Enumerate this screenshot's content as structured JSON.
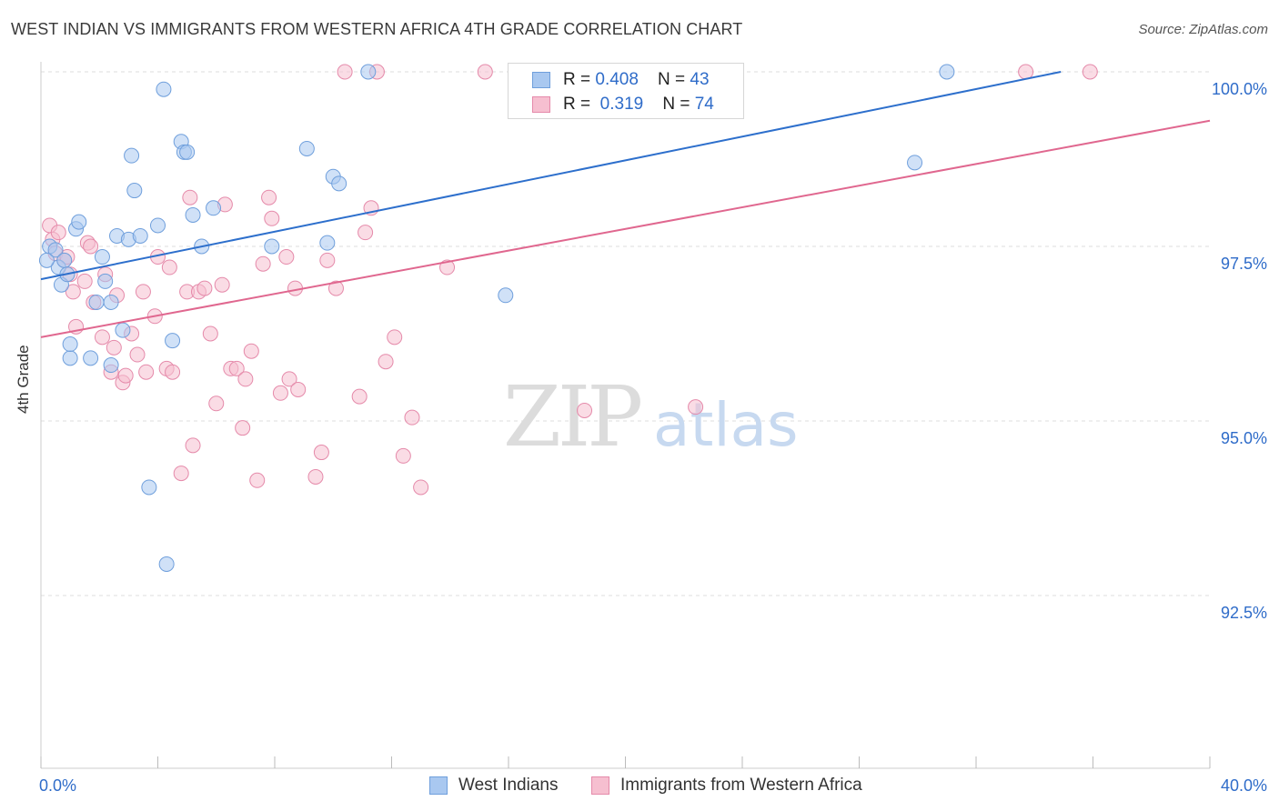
{
  "title": "WEST INDIAN VS IMMIGRANTS FROM WESTERN AFRICA 4TH GRADE CORRELATION CHART",
  "source": "Source: ZipAtlas.com",
  "watermark": {
    "zip": "ZIP",
    "atlas": "atlas"
  },
  "colors": {
    "blue_fill": "#a9c8f0",
    "blue_stroke": "#6f9fdc",
    "blue_line": "#2d6fcc",
    "pink_fill": "#f6bfd0",
    "pink_stroke": "#e58aaa",
    "pink_line": "#e0678f",
    "axis_text": "#2f6cc9",
    "grid": "#dddddd"
  },
  "legend": {
    "row1": {
      "r_label": "R = ",
      "r_value": "0.408",
      "n_label": "N = ",
      "n_value": "43"
    },
    "row2": {
      "r_label": "R = ",
      "r_value": "0.319",
      "n_label": "N = ",
      "n_value": "74"
    }
  },
  "chart_data": {
    "type": "scatter",
    "title": "WEST INDIAN VS IMMIGRANTS FROM WESTERN AFRICA 4TH GRADE CORRELATION CHART",
    "xlabel": "",
    "ylabel": "4th Grade",
    "xlim": [
      0,
      40
    ],
    "ylim": [
      90.2,
      100.45
    ],
    "x_tick_labels": [
      "0.0%",
      "40.0%"
    ],
    "y_ticks": [
      92.5,
      95.0,
      97.5,
      100.0
    ],
    "y_tick_labels": [
      "92.5%",
      "95.0%",
      "97.5%",
      "100.0%"
    ],
    "grid": true,
    "legend_position": "top-center",
    "series": [
      {
        "name": "West Indians",
        "color": "#a9c8f0",
        "r": 0.408,
        "n": 43,
        "trend": {
          "x": [
            0,
            34.9
          ],
          "y": [
            97.03,
            100.0
          ]
        },
        "points": [
          [
            0.3,
            97.5
          ],
          [
            0.5,
            97.45
          ],
          [
            0.6,
            97.2
          ],
          [
            0.7,
            96.95
          ],
          [
            0.8,
            97.3
          ],
          [
            0.9,
            97.1
          ],
          [
            1.0,
            95.9
          ],
          [
            1.0,
            96.1
          ],
          [
            1.2,
            97.75
          ],
          [
            1.3,
            97.85
          ],
          [
            1.7,
            95.9
          ],
          [
            1.9,
            96.7
          ],
          [
            2.1,
            97.35
          ],
          [
            2.2,
            97.0
          ],
          [
            2.4,
            96.7
          ],
          [
            2.4,
            95.8
          ],
          [
            2.6,
            97.65
          ],
          [
            2.8,
            96.3
          ],
          [
            3.0,
            97.6
          ],
          [
            3.1,
            98.8
          ],
          [
            3.2,
            98.3
          ],
          [
            3.4,
            97.65
          ],
          [
            3.7,
            94.05
          ],
          [
            4.0,
            97.8
          ],
          [
            4.2,
            99.75
          ],
          [
            4.3,
            92.95
          ],
          [
            4.5,
            96.15
          ],
          [
            4.8,
            99.0
          ],
          [
            4.9,
            98.85
          ],
          [
            5.0,
            98.85
          ],
          [
            5.2,
            97.95
          ],
          [
            5.5,
            97.5
          ],
          [
            5.9,
            98.05
          ],
          [
            7.9,
            97.5
          ],
          [
            9.1,
            98.9
          ],
          [
            9.8,
            97.55
          ],
          [
            10.0,
            98.5
          ],
          [
            10.2,
            98.4
          ],
          [
            11.2,
            100.0
          ],
          [
            15.9,
            96.8
          ],
          [
            29.9,
            98.7
          ],
          [
            31.0,
            100.0
          ],
          [
            0.2,
            97.3
          ]
        ]
      },
      {
        "name": "Immigrants from Western Africa",
        "color": "#f6bfd0",
        "r": 0.319,
        "n": 74,
        "trend": {
          "x": [
            0,
            40
          ],
          "y": [
            96.2,
            99.3
          ]
        },
        "points": [
          [
            0.3,
            97.8
          ],
          [
            0.4,
            97.6
          ],
          [
            0.5,
            97.4
          ],
          [
            0.6,
            97.7
          ],
          [
            0.8,
            97.3
          ],
          [
            0.9,
            97.35
          ],
          [
            1.0,
            97.1
          ],
          [
            1.1,
            96.85
          ],
          [
            1.2,
            96.35
          ],
          [
            1.5,
            97.0
          ],
          [
            1.6,
            97.55
          ],
          [
            1.7,
            97.5
          ],
          [
            1.8,
            96.7
          ],
          [
            2.1,
            96.2
          ],
          [
            2.2,
            97.1
          ],
          [
            2.4,
            95.7
          ],
          [
            2.5,
            96.05
          ],
          [
            2.6,
            96.8
          ],
          [
            2.8,
            95.55
          ],
          [
            2.9,
            95.65
          ],
          [
            3.1,
            96.25
          ],
          [
            3.3,
            95.95
          ],
          [
            3.5,
            96.85
          ],
          [
            3.6,
            95.7
          ],
          [
            3.9,
            96.5
          ],
          [
            4.0,
            97.35
          ],
          [
            4.3,
            95.75
          ],
          [
            4.4,
            97.2
          ],
          [
            4.5,
            95.7
          ],
          [
            4.8,
            94.25
          ],
          [
            5.0,
            96.85
          ],
          [
            5.1,
            98.2
          ],
          [
            5.2,
            94.65
          ],
          [
            5.4,
            96.85
          ],
          [
            5.6,
            96.9
          ],
          [
            5.8,
            96.25
          ],
          [
            6.0,
            95.25
          ],
          [
            6.2,
            96.95
          ],
          [
            6.3,
            98.1
          ],
          [
            6.5,
            95.75
          ],
          [
            6.7,
            95.75
          ],
          [
            6.9,
            94.9
          ],
          [
            7.0,
            95.6
          ],
          [
            7.2,
            96.0
          ],
          [
            7.4,
            94.15
          ],
          [
            7.6,
            97.25
          ],
          [
            7.8,
            98.2
          ],
          [
            7.9,
            97.9
          ],
          [
            8.2,
            95.4
          ],
          [
            8.4,
            97.35
          ],
          [
            8.5,
            95.6
          ],
          [
            8.7,
            96.9
          ],
          [
            8.8,
            95.45
          ],
          [
            9.4,
            94.2
          ],
          [
            9.6,
            94.55
          ],
          [
            9.8,
            97.3
          ],
          [
            10.1,
            96.9
          ],
          [
            10.4,
            100.0
          ],
          [
            10.9,
            95.35
          ],
          [
            11.1,
            97.7
          ],
          [
            11.3,
            98.05
          ],
          [
            11.5,
            100.0
          ],
          [
            11.8,
            95.85
          ],
          [
            12.1,
            96.2
          ],
          [
            12.4,
            94.5
          ],
          [
            12.7,
            95.05
          ],
          [
            13.0,
            94.05
          ],
          [
            13.9,
            97.2
          ],
          [
            15.2,
            100.0
          ],
          [
            17.7,
            100.0
          ],
          [
            18.6,
            95.15
          ],
          [
            22.4,
            95.2
          ],
          [
            33.7,
            100.0
          ],
          [
            35.9,
            100.0
          ]
        ]
      }
    ]
  }
}
